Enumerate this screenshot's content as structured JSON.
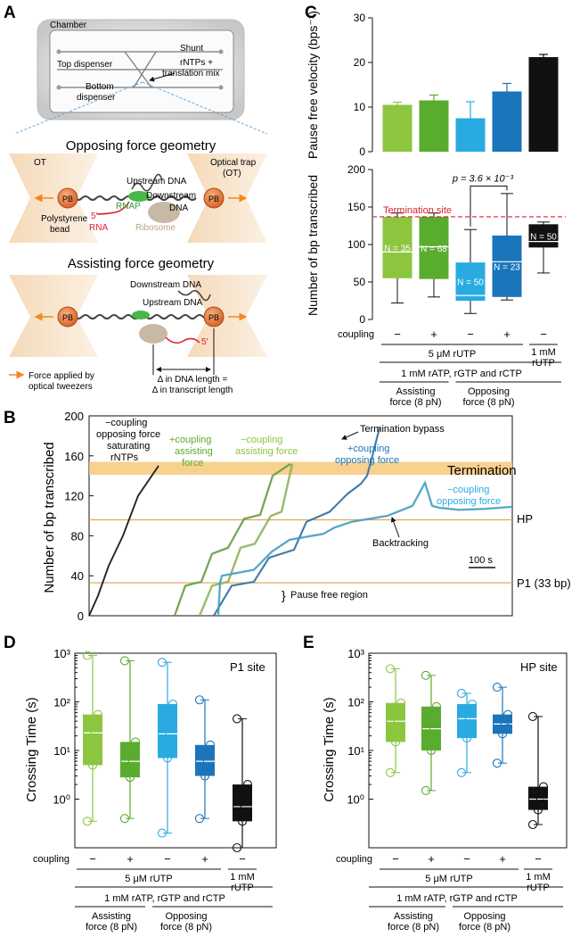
{
  "panels": {
    "A": "A",
    "B": "B",
    "C": "C",
    "D": "D",
    "E": "E"
  },
  "colors": {
    "asg_minus": "#8cc63f",
    "asg_plus": "#5aac2e",
    "opp_minus": "#29abe2",
    "opp_plus": "#1b75bb",
    "sat": "#111111",
    "termination": "#d9212f",
    "band": "#f7c97b"
  },
  "schematic": {
    "chamber": "Chamber",
    "shunt": "Shunt",
    "top_dispenser": "Top dispenser",
    "rntps_mix_1": "rNTPs +",
    "rntps_mix_2": "translation mix",
    "bottom_dispenser_1": "Bottom",
    "bottom_dispenser_2": "dispenser",
    "opposing_title": "Opposing force geometry",
    "assisting_title": "Assisting force geometry",
    "ot_left": "OT",
    "ot_right_1": "Optical trap",
    "ot_right_2": "(OT)",
    "upstream_dna": "Upstream DNA",
    "downstream_1": "Downstream",
    "dna": "DNA",
    "rnap": "RNAP",
    "pb": "PB",
    "polystyrene_1": "Polystyrene",
    "polystyrene_2": "bead",
    "five_prime": "5′",
    "rna": "RNA",
    "ribosome": "Ribosome",
    "downstream_dna": "Downstream DNA",
    "upstream_dna2": "Upstream DNA",
    "force_legend_1": "Force applied by",
    "force_legend_2": "optical tweezers",
    "delta_1": "Δ in DNA length =",
    "delta_2": "Δ in transcript length"
  },
  "cond_labels": {
    "coupling": "coupling",
    "signs": [
      "−",
      "+",
      "−",
      "+",
      "−"
    ],
    "rutp_5": "5 μM rUTP",
    "rutp_1mM_1": "1 mM",
    "rutp_1mM_2": "rUTP",
    "ntps": "1 mM rATP, rGTP and rCTP",
    "assisting_1": "Assisting",
    "assisting_2": "force (8 pN)",
    "opposing_1": "Opposing",
    "opposing_2": "force (8 pN)"
  },
  "panelB": {
    "ann_sat_1": "−coupling",
    "ann_sat_2": "opposing force",
    "ann_sat_3": "saturating",
    "ann_sat_4": "rNTPs",
    "ann_pa_1": "+coupling",
    "ann_pa_2": "assisting",
    "ann_pa_3": "force",
    "ann_ma_1": "−coupling",
    "ann_ma_2": "assisting force",
    "ann_bypass": "Termination bypass",
    "ann_po_1": "+coupling",
    "ann_po_2": "opposing force",
    "termination": "Termination",
    "ann_mo_1": "−coupling",
    "ann_mo_2": "opposing force",
    "hp": "HP",
    "backtracking": "Backtracking",
    "scalebar": "100 s",
    "p1": "P1 (33 bp)",
    "pause_free": "Pause free region"
  },
  "chart_data": [
    {
      "id": "C_top",
      "type": "bar",
      "ylabel": "Pause free velocity (bps⁻¹)",
      "ylim": [
        0,
        30
      ],
      "yticks": [
        0,
        10,
        20,
        30
      ],
      "categories": [
        "asg-",
        "asg+",
        "opp-",
        "opp+",
        "sat"
      ],
      "values": [
        10.5,
        11.5,
        7.5,
        13.5,
        21.2
      ],
      "errors": [
        0.6,
        1.2,
        3.7,
        1.8,
        0.6
      ]
    },
    {
      "id": "C_bottom",
      "type": "box",
      "ylabel": "Number of bp transcribed",
      "ylim": [
        0,
        200
      ],
      "yticks": [
        0,
        50,
        100,
        150,
        200
      ],
      "termination_label": "Termination site",
      "termination_value": 137,
      "pvalue": "p = 3.6 × 10⁻³",
      "boxes": [
        {
          "n": "N = 35",
          "q1": 55,
          "median": 90,
          "q3": 137,
          "whislo": 22,
          "whishi": 142
        },
        {
          "n": "N = 68",
          "q1": 54,
          "median": 97,
          "q3": 137,
          "whislo": 30,
          "whishi": 142
        },
        {
          "n": "N = 50",
          "q1": 25,
          "median": 32,
          "q3": 76,
          "whislo": 8,
          "whishi": 120
        },
        {
          "n": "N = 23",
          "q1": 30,
          "median": 77,
          "q3": 112,
          "whislo": 26,
          "whishi": 168
        },
        {
          "n": "N = 50",
          "q1": 96,
          "median": 104,
          "q3": 127,
          "whislo": 62,
          "whishi": 130
        }
      ]
    },
    {
      "id": "B",
      "type": "line",
      "ylabel": "Number of bp transcribed",
      "ylim": [
        0,
        200
      ],
      "yticks": [
        0,
        40,
        80,
        120,
        160,
        200
      ],
      "termination_band": [
        141,
        154
      ],
      "hp_value": 96,
      "p1_value": 33,
      "series": [
        {
          "name": "saturating",
          "color": "sat",
          "x": [
            0,
            10,
            22,
            38,
            55,
            78
          ],
          "y": [
            0,
            20,
            50,
            80,
            120,
            150
          ]
        },
        {
          "name": "+coupling assisting",
          "color": "asg_plus",
          "x": [
            0,
            12,
            30,
            42,
            60,
            78,
            96,
            110,
            130
          ],
          "y": [
            0,
            30,
            34,
            62,
            68,
            97,
            101,
            140,
            152
          ]
        },
        {
          "name": "−coupling assisting",
          "color": "asg_minus",
          "x": [
            0,
            14,
            32,
            46,
            62,
            80,
            92,
            104
          ],
          "y": [
            0,
            30,
            34,
            68,
            72,
            100,
            104,
            152
          ]
        },
        {
          "name": "+coupling opposing",
          "color": "opp_plus",
          "x": [
            0,
            20,
            45,
            62,
            90,
            104,
            130,
            150,
            165,
            172,
            178,
            186
          ],
          "y": [
            0,
            30,
            34,
            58,
            66,
            94,
            104,
            122,
            132,
            140,
            160,
            188
          ]
        },
        {
          "name": "−coupling opposing",
          "color": "opp_minus",
          "x": [
            0,
            2,
            4,
            40,
            60,
            80,
            118,
            130,
            150,
            190,
            218,
            232,
            240,
            248,
            270,
            300,
            330
          ],
          "y": [
            0,
            33,
            40,
            46,
            64,
            76,
            82,
            88,
            94,
            100,
            110,
            133,
            110,
            108,
            106,
            107,
            109
          ]
        }
      ]
    },
    {
      "id": "D",
      "type": "box",
      "title": "P1 site",
      "ylabel": "Crossing Time (s)",
      "scale": "log",
      "ylim": [
        0.1,
        1000
      ],
      "yticks": [
        "10⁰",
        "10¹",
        "10²",
        "10³"
      ],
      "boxes": [
        {
          "q1": 5,
          "median": 23,
          "q3": 55,
          "whislo": 0.35,
          "whishi": 900
        },
        {
          "q1": 2.8,
          "median": 6,
          "q3": 15,
          "whislo": 0.4,
          "whishi": 700
        },
        {
          "q1": 7,
          "median": 22,
          "q3": 90,
          "whislo": 0.2,
          "whishi": 650
        },
        {
          "q1": 3,
          "median": 6,
          "q3": 13,
          "whislo": 0.4,
          "whishi": 110
        },
        {
          "q1": 0.35,
          "median": 0.7,
          "q3": 2,
          "whislo": 0.1,
          "whishi": 45
        }
      ]
    },
    {
      "id": "E",
      "type": "box",
      "title": "HP site",
      "ylabel": "Crossing Time (s)",
      "scale": "log",
      "ylim": [
        0.1,
        1000
      ],
      "yticks": [
        "10⁰",
        "10¹",
        "10²",
        "10³"
      ],
      "boxes": [
        {
          "q1": 15,
          "median": 40,
          "q3": 95,
          "whislo": 3.5,
          "whishi": 480
        },
        {
          "q1": 10,
          "median": 28,
          "q3": 80,
          "whislo": 1.5,
          "whishi": 350
        },
        {
          "q1": 18,
          "median": 45,
          "q3": 90,
          "whislo": 3.5,
          "whishi": 150
        },
        {
          "q1": 22,
          "median": 35,
          "q3": 55,
          "whislo": 5.5,
          "whishi": 200
        },
        {
          "q1": 0.6,
          "median": 1,
          "q3": 1.8,
          "whislo": 0.3,
          "whishi": 50
        }
      ]
    }
  ]
}
